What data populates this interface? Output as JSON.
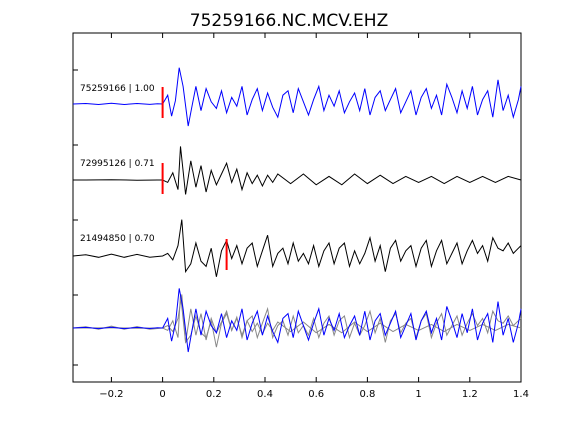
{
  "chart_data": {
    "type": "line",
    "title": "75259166.NC.MCV.EHZ",
    "xlabel": "",
    "ylabel": "",
    "xlim": [
      -0.35,
      1.4
    ],
    "xticks": [
      -0.2,
      0,
      0.2,
      0.4,
      0.6,
      0.8,
      1,
      1.2,
      1.4
    ],
    "xtick_labels": [
      "−0.2",
      "0",
      "0.2",
      "0.4",
      "0.6",
      "0.8",
      "1",
      "1.2",
      "1.4"
    ],
    "grid": false,
    "legend": "none",
    "series": [
      {
        "label": "75259166 | 1.00",
        "color": "#0000ff",
        "pick_time": 0.0,
        "pick_color": "#ff0000",
        "x": [
          -0.35,
          -0.3,
          -0.25,
          -0.2,
          -0.15,
          -0.1,
          -0.05,
          -0.02,
          0.0,
          0.02,
          0.035,
          0.05,
          0.065,
          0.08,
          0.1,
          0.115,
          0.13,
          0.15,
          0.17,
          0.19,
          0.21,
          0.23,
          0.25,
          0.27,
          0.29,
          0.31,
          0.33,
          0.35,
          0.37,
          0.39,
          0.41,
          0.43,
          0.45,
          0.47,
          0.49,
          0.51,
          0.53,
          0.55,
          0.57,
          0.59,
          0.61,
          0.63,
          0.65,
          0.67,
          0.69,
          0.71,
          0.73,
          0.75,
          0.77,
          0.79,
          0.81,
          0.83,
          0.85,
          0.87,
          0.89,
          0.91,
          0.93,
          0.95,
          0.97,
          0.99,
          1.01,
          1.03,
          1.05,
          1.07,
          1.09,
          1.11,
          1.13,
          1.15,
          1.17,
          1.19,
          1.21,
          1.23,
          1.25,
          1.27,
          1.29,
          1.31,
          1.33,
          1.35,
          1.37,
          1.39,
          1.4
        ],
        "y": [
          0,
          0.05,
          -0.05,
          0.06,
          -0.05,
          0.05,
          -0.04,
          0.02,
          0,
          0.8,
          -1.1,
          0.3,
          3.3,
          1.6,
          -2.0,
          -0.2,
          1.6,
          -0.6,
          1.4,
          0.2,
          -0.4,
          1.2,
          -0.8,
          0.6,
          -0.2,
          1.6,
          -1.0,
          0.4,
          1.4,
          -0.6,
          1.0,
          -0.3,
          -1.2,
          0.8,
          1.2,
          -0.8,
          1.4,
          0.2,
          -1.0,
          0.4,
          1.6,
          -0.6,
          0.8,
          -0.2,
          1.2,
          -0.8,
          0.2,
          1.0,
          -0.6,
          1.4,
          -1.0,
          0.6,
          1.2,
          -0.6,
          0.4,
          1.4,
          -0.8,
          0.2,
          1.2,
          -1.0,
          0.6,
          1.4,
          -0.4,
          0.8,
          -1.0,
          1.8,
          0.6,
          -0.8,
          1.2,
          -0.4,
          1.6,
          -1.0,
          0.4,
          1.2,
          -1.2,
          2.2,
          -0.6,
          0.8,
          -1.2,
          0.4,
          1.6
        ]
      },
      {
        "label": "72995126 | 0.71",
        "color": "#000000",
        "pick_time": 0.0,
        "pick_color": "#ff0000",
        "x": [
          -0.35,
          -0.3,
          -0.2,
          -0.1,
          -0.02,
          0.0,
          0.02,
          0.04,
          0.06,
          0.07,
          0.09,
          0.11,
          0.13,
          0.15,
          0.17,
          0.19,
          0.21,
          0.23,
          0.25,
          0.27,
          0.29,
          0.31,
          0.33,
          0.35,
          0.37,
          0.39,
          0.41,
          0.43,
          0.45,
          0.5,
          0.55,
          0.6,
          0.65,
          0.7,
          0.75,
          0.8,
          0.85,
          0.9,
          0.95,
          1.0,
          1.05,
          1.1,
          1.15,
          1.2,
          1.25,
          1.3,
          1.35,
          1.4
        ],
        "y": [
          0,
          0,
          0.02,
          -0.02,
          0,
          0,
          -0.2,
          0.6,
          -0.8,
          2.8,
          -1.2,
          1.6,
          -0.6,
          1.2,
          -1.0,
          0.8,
          -0.4,
          0.5,
          1.4,
          -0.2,
          0.9,
          -0.8,
          0.6,
          -0.3,
          0.4,
          -0.5,
          0.4,
          -0.2,
          0.5,
          -0.3,
          0.5,
          -0.4,
          0.3,
          -0.4,
          0.5,
          -0.3,
          0.4,
          -0.3,
          0.3,
          -0.2,
          0.3,
          -0.3,
          0.3,
          -0.2,
          0.3,
          -0.2,
          0.3,
          0
        ]
      },
      {
        "label": "21494850 | 0.70",
        "color": "#000000",
        "pick_time": 0.25,
        "pick_color": "#ff0000",
        "x": [
          -0.35,
          -0.3,
          -0.25,
          -0.2,
          -0.15,
          -0.1,
          -0.05,
          0.0,
          0.02,
          0.04,
          0.06,
          0.075,
          0.09,
          0.11,
          0.13,
          0.15,
          0.17,
          0.19,
          0.21,
          0.23,
          0.25,
          0.27,
          0.29,
          0.31,
          0.33,
          0.35,
          0.37,
          0.39,
          0.41,
          0.43,
          0.45,
          0.47,
          0.49,
          0.51,
          0.53,
          0.55,
          0.57,
          0.59,
          0.61,
          0.63,
          0.65,
          0.67,
          0.69,
          0.71,
          0.73,
          0.75,
          0.77,
          0.79,
          0.81,
          0.83,
          0.85,
          0.87,
          0.89,
          0.91,
          0.93,
          0.95,
          0.97,
          0.99,
          1.01,
          1.03,
          1.05,
          1.07,
          1.09,
          1.11,
          1.13,
          1.15,
          1.17,
          1.19,
          1.21,
          1.23,
          1.25,
          1.27,
          1.29,
          1.31,
          1.33,
          1.35,
          1.37,
          1.39,
          1.4
        ],
        "y": [
          0,
          0.1,
          -0.1,
          0.15,
          -0.1,
          0.12,
          -0.1,
          0,
          0.2,
          -0.3,
          0.8,
          2.8,
          -1.2,
          -0.6,
          1.0,
          -0.4,
          -0.8,
          0.6,
          -1.6,
          0.4,
          1.2,
          -0.2,
          0.8,
          -0.6,
          0.6,
          1.0,
          -0.8,
          0.4,
          1.6,
          -0.8,
          0.2,
          0.6,
          -0.6,
          1.0,
          -0.4,
          0.2,
          -0.6,
          0.8,
          -0.8,
          0.4,
          1.0,
          -0.6,
          0.6,
          1.0,
          -0.8,
          0.4,
          -0.6,
          0.2,
          1.4,
          -0.4,
          0.8,
          -1.2,
          0.6,
          1.2,
          -0.4,
          0.4,
          0.8,
          -0.8,
          0.6,
          1.2,
          -0.8,
          0.4,
          1.2,
          -0.6,
          0.2,
          1.0,
          -0.6,
          0.4,
          1.2,
          0.2,
          0.8,
          -0.4,
          1.4,
          0.6,
          0.4,
          1.0,
          0.2,
          0.6,
          0.8
        ]
      }
    ]
  }
}
